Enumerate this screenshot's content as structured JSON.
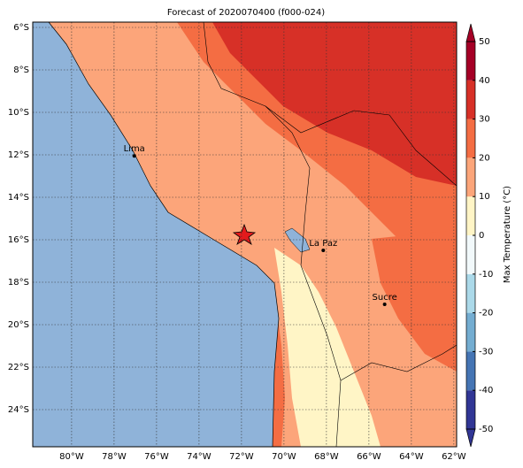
{
  "title": "Forecast of 2020070400 (f000-024)",
  "xlim": [
    -81.83,
    -61.87
  ],
  "ylim": [
    -25.75,
    -5.75
  ],
  "xticks": [
    {
      "value": -80,
      "label": "80°W"
    },
    {
      "value": -78,
      "label": "78°W"
    },
    {
      "value": -76,
      "label": "76°W"
    },
    {
      "value": -74,
      "label": "74°W"
    },
    {
      "value": -72,
      "label": "72°W"
    },
    {
      "value": -70,
      "label": "70°W"
    },
    {
      "value": -68,
      "label": "68°W"
    },
    {
      "value": -66,
      "label": "66°W"
    },
    {
      "value": -64,
      "label": "64°W"
    },
    {
      "value": -62,
      "label": "62°W"
    }
  ],
  "yticks": [
    {
      "value": -6,
      "label": "6°S"
    },
    {
      "value": -8,
      "label": "8°S"
    },
    {
      "value": -10,
      "label": "10°S"
    },
    {
      "value": -12,
      "label": "12°S"
    },
    {
      "value": -14,
      "label": "14°S"
    },
    {
      "value": -16,
      "label": "16°S"
    },
    {
      "value": -18,
      "label": "18°S"
    },
    {
      "value": -20,
      "label": "20°S"
    },
    {
      "value": -22,
      "label": "22°S"
    },
    {
      "value": -24,
      "label": "24°S"
    }
  ],
  "cities": [
    {
      "name": "Lima",
      "lon": -77.05,
      "lat": -12.05
    },
    {
      "name": "La Paz",
      "lon": -68.15,
      "lat": -16.5
    },
    {
      "name": "Sucre",
      "lon": -65.26,
      "lat": -19.04
    }
  ],
  "colorbar": {
    "label": "Max Temperature (°C)",
    "lim": [
      -50,
      50
    ],
    "ticks": [
      -50,
      -40,
      -30,
      -20,
      -10,
      0,
      10,
      20,
      30,
      40,
      50
    ],
    "colors": [
      "#313695",
      "#4575b4",
      "#74add1",
      "#abd9e9",
      "#f2f9fb",
      "#fff5c6",
      "#fca57a",
      "#f46d43",
      "#d73027",
      "#a50026"
    ]
  }
}
